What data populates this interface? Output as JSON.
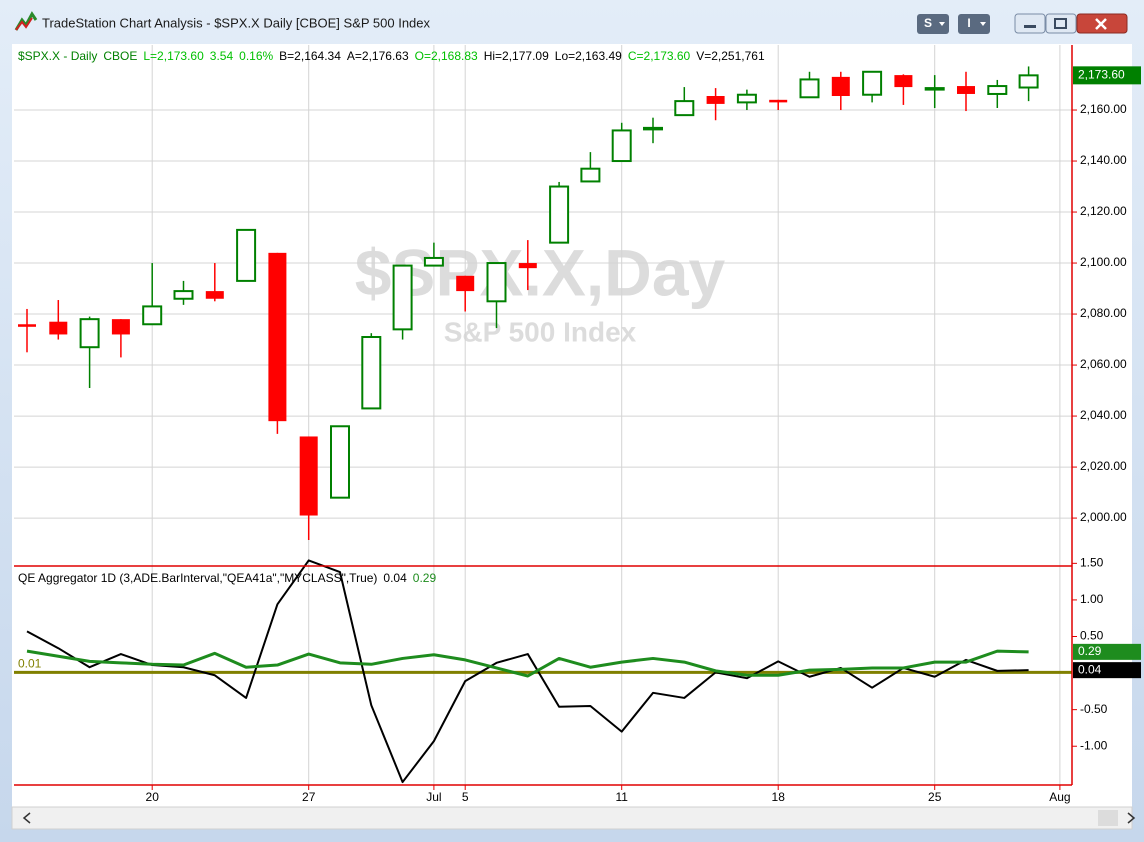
{
  "window": {
    "title": "TradeStation Chart Analysis - $SPX.X Daily [CBOE] S&P 500 Index",
    "buttons": [
      "S",
      "I"
    ]
  },
  "watermark": {
    "symbol": "$SPX.X,Day",
    "description": "S&P 500 Index"
  },
  "chart_data": [
    {
      "type": "candlestick",
      "header": [
        {
          "text": "$SPX.X - Daily",
          "color": "#008000"
        },
        {
          "text": "CBOE",
          "color": "#008000"
        },
        {
          "text": "L=2,173.60",
          "color": "#00c000"
        },
        {
          "text": "3.54",
          "color": "#00c000"
        },
        {
          "text": "0.16%",
          "color": "#00c000"
        },
        {
          "text": "B=2,164.34",
          "color": "#000000"
        },
        {
          "text": "A=2,176.63",
          "color": "#000000"
        },
        {
          "text": "O=2,168.83",
          "color": "#00c000"
        },
        {
          "text": "Hi=2,177.09",
          "color": "#000000"
        },
        {
          "text": "Lo=2,163.49",
          "color": "#000000"
        },
        {
          "text": "C=2,173.60",
          "color": "#00c000"
        },
        {
          "text": "V=2,251,761",
          "color": "#000000"
        }
      ],
      "open": [
        2076,
        2077,
        2067,
        2078,
        2076,
        2086,
        2089,
        2093,
        2104,
        2032,
        2008,
        2043,
        2074,
        2099,
        2095,
        2085,
        2100,
        2108,
        2132,
        2140,
        2153,
        2158,
        2165.5,
        2163,
        2164,
        2165,
        2173,
        2166,
        2173.7,
        2168.4,
        2169.4,
        2166.3,
        2168.83
      ],
      "high": [
        2082,
        2085.5,
        2079,
        2078,
        2100,
        2093,
        2100,
        2113,
        2104,
        2032,
        2036,
        2072.5,
        2099,
        2108,
        2095,
        2100,
        2109,
        2131.8,
        2143.5,
        2155,
        2157,
        2169,
        2168.6,
        2168,
        2164,
        2175,
        2175,
        2175,
        2174,
        2173.7,
        2175,
        2171.8,
        2177.09
      ],
      "low": [
        2065,
        2070,
        2051,
        2063,
        2076,
        2083.6,
        2085,
        2093,
        2033,
        1991.4,
        2008,
        2043,
        2070,
        2099,
        2081,
        2074.5,
        2089.4,
        2108,
        2132,
        2140,
        2147,
        2158,
        2156,
        2160,
        2160,
        2165,
        2160,
        2163,
        2162,
        2160.8,
        2159.6,
        2160.8,
        2163.49
      ],
      "close": [
        2075,
        2072,
        2078,
        2072,
        2083,
        2089,
        2086,
        2113,
        2038,
        2001,
        2036,
        2071,
        2099,
        2102,
        2089,
        2100,
        2098,
        2130,
        2137,
        2152,
        2153,
        2163.5,
        2162.4,
        2166,
        2163,
        2172,
        2165.5,
        2175,
        2169,
        2168.6,
        2166.3,
        2169.4,
        2173.6
      ],
      "last_label": "2,173.60",
      "up_color": "#008000",
      "down_color": "#ff0000",
      "ylim": [
        1981.6,
        2185.5
      ],
      "yticks": [
        {
          "value": 2000,
          "label": "2,000.00"
        },
        {
          "value": 2020,
          "label": "2,020.00"
        },
        {
          "value": 2040,
          "label": "2,040.00"
        },
        {
          "value": 2060,
          "label": "2,060.00"
        },
        {
          "value": 2080,
          "label": "2,080.00"
        },
        {
          "value": 2100,
          "label": "2,100.00"
        },
        {
          "value": 2120,
          "label": "2,120.00"
        },
        {
          "value": 2140,
          "label": "2,140.00"
        },
        {
          "value": 2160,
          "label": "2,160.00"
        }
      ],
      "xticks": [
        {
          "value": 4,
          "label": "20"
        },
        {
          "value": 9,
          "label": "27"
        },
        {
          "value": 13,
          "label": "Jul"
        },
        {
          "value": 14,
          "label": "5"
        },
        {
          "value": 19,
          "label": "11"
        },
        {
          "value": 24,
          "label": "18"
        },
        {
          "value": 29,
          "label": "25"
        },
        {
          "value": 33,
          "label": "Aug"
        }
      ],
      "grid": true
    },
    {
      "type": "line",
      "title": "QE Aggregator 1D (3,ADE.BarInterval,\"QEA41a\",\"MYCLASS\",True)",
      "series": [
        {
          "color": "#000000",
          "last_label": "0.04",
          "values": [
            0.57,
            0.34,
            0.08,
            0.26,
            0.11,
            0.08,
            -0.03,
            -0.34,
            0.94,
            1.54,
            1.38,
            -0.44,
            -1.49,
            -0.93,
            -0.11,
            0.14,
            0.26,
            -0.46,
            -0.45,
            -0.8,
            -0.27,
            -0.34,
            0.01,
            -0.07,
            0.16,
            -0.05,
            0.07,
            -0.2,
            0.07,
            -0.05,
            0.18,
            0.03,
            0.04
          ]
        },
        {
          "color": "#1e8c1e",
          "last_label": "0.29",
          "values": [
            0.3,
            0.23,
            0.16,
            0.14,
            0.12,
            0.11,
            0.27,
            0.08,
            0.11,
            0.26,
            0.14,
            0.12,
            0.2,
            0.25,
            0.18,
            0.07,
            -0.04,
            0.2,
            0.08,
            0.15,
            0.2,
            0.15,
            0.03,
            -0.03,
            -0.03,
            0.04,
            0.05,
            0.07,
            0.07,
            0.15,
            0.15,
            0.3,
            0.29
          ]
        }
      ],
      "reference": 0.01,
      "reference_color": "#808000",
      "ylim": [
        -1.53,
        1.45
      ],
      "yticks": [
        {
          "value": 1.5,
          "label": "1.50"
        },
        {
          "value": 1,
          "label": "1.00"
        },
        {
          "value": 0.5,
          "label": "0.50"
        },
        {
          "value": -0.5,
          "label": "-0.50"
        },
        {
          "value": -1,
          "label": "-1.00"
        }
      ]
    }
  ]
}
